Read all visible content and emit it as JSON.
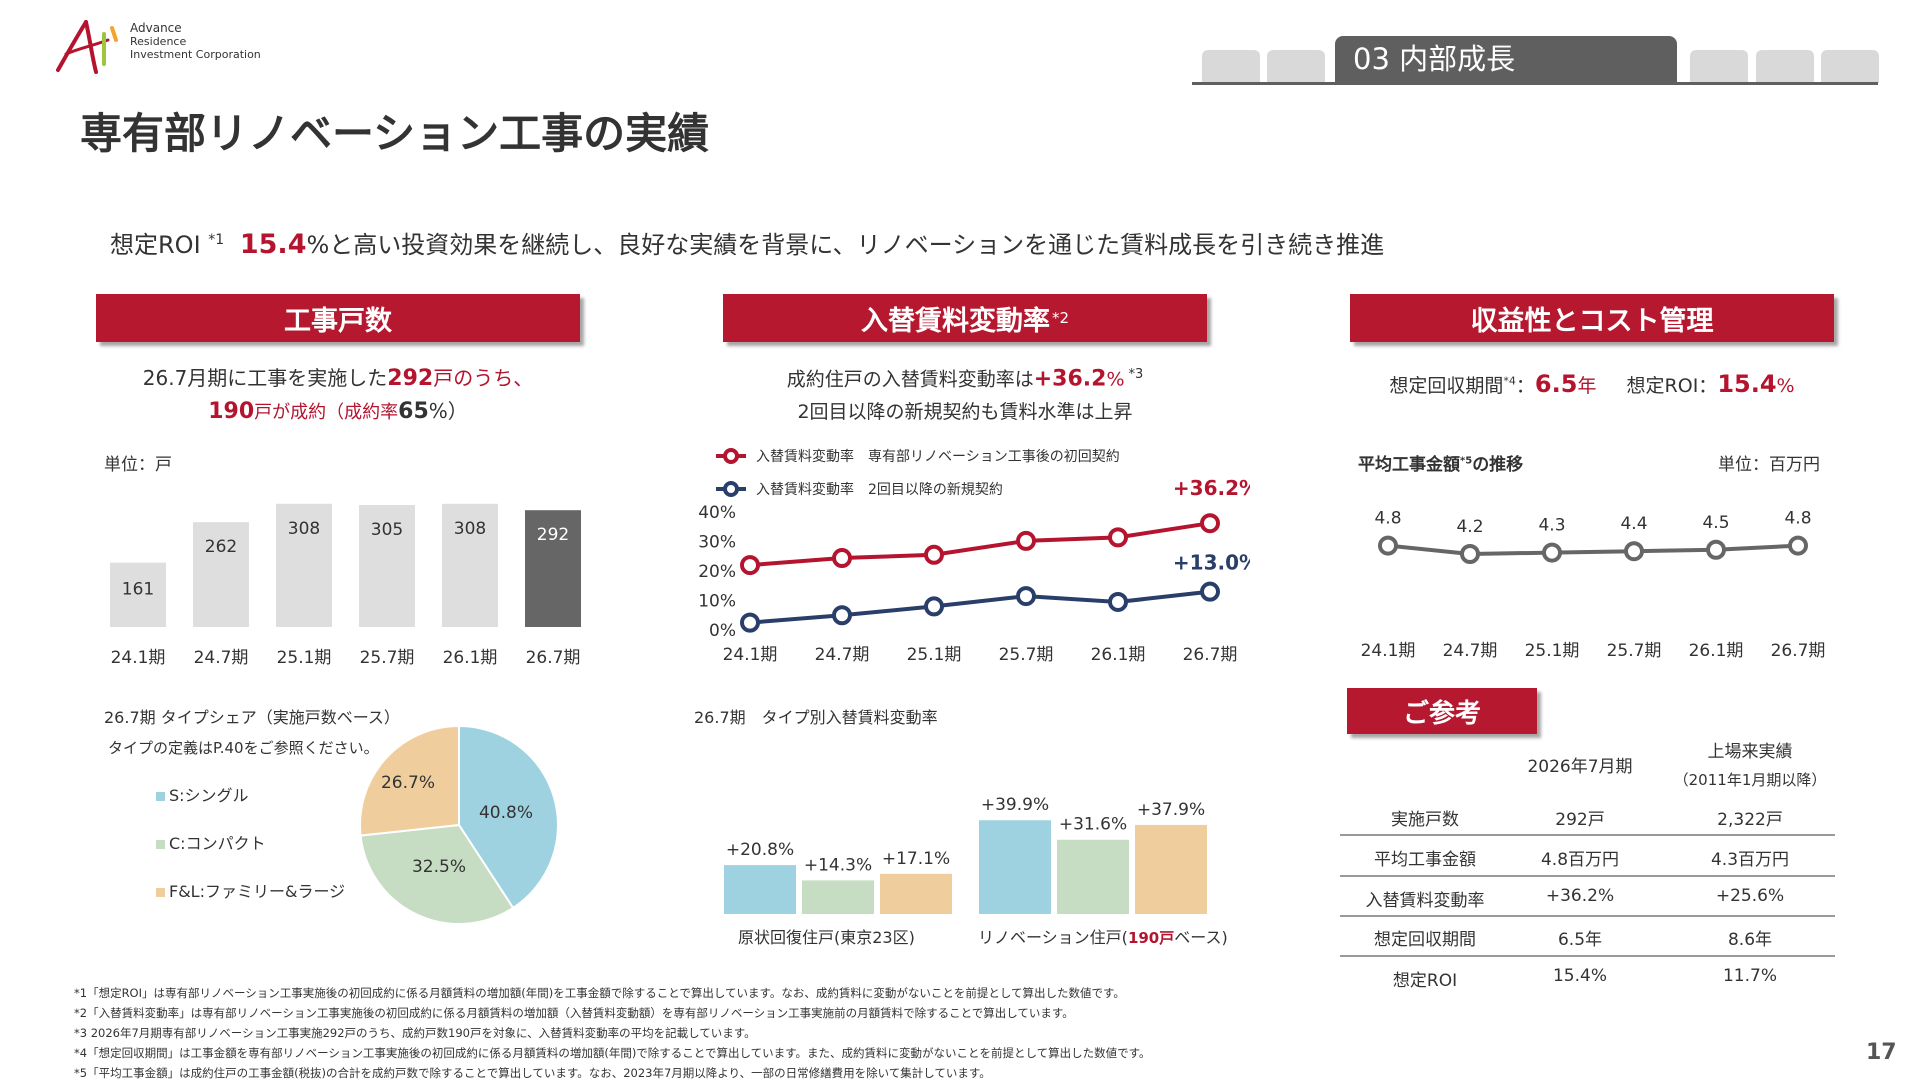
{
  "header": {
    "logo": {
      "line1": "Advance",
      "line2": "Residence",
      "line3": "Investment Corporation"
    },
    "section_tab": "03 内部成長",
    "title": "専有部リノベーション工事の実績"
  },
  "lead": {
    "prefix": "想定ROI",
    "note_mark": "*1",
    "value": "15.4",
    "text": "%と高い投資効果を継続し、良好な実績を背景に、リノベーションを通じた賃料成長を引き続き推進"
  },
  "panel_works": {
    "heading": "工事戸数",
    "summary1_a": "26.7月期に工事を実施した",
    "summary1_b": "292",
    "summary1_c": "戸のうち、",
    "summary2_a": "190",
    "summary2_b": "戸が成約（成約率",
    "summary2_c": "65",
    "summary2_d": "%）",
    "unit": "単位：戸"
  },
  "panel_rent": {
    "heading": "入替賃料変動率",
    "heading_note": "*2",
    "summary1_a": "成約住戸の入替賃料変動率は",
    "summary1_b": "+36.2",
    "summary1_c": "%",
    "summary1_note": "*3",
    "summary2": "2回目以降の新規契約も賃料水準は上昇"
  },
  "panel_profit": {
    "heading": "収益性とコスト管理",
    "payback_label": "想定回収期間",
    "payback_note": "*4",
    "payback_colon": "：",
    "payback_value": "6.5",
    "payback_unit": "年",
    "roi_label": "想定ROI：",
    "roi_value": "15.4",
    "roi_unit": "%",
    "chart_title_a": "平均工事金額",
    "chart_title_note": "*5",
    "chart_title_b": "の推移",
    "unit": "単位：百万円"
  },
  "chart_data": [
    {
      "type": "bar",
      "categories": [
        "24.1期",
        "24.7期",
        "25.1期",
        "25.7期",
        "26.1期",
        "26.7期"
      ],
      "values": [
        161,
        262,
        308,
        305,
        308,
        292
      ],
      "ylabel": "単位：戸",
      "colors": [
        "#dedede",
        "#dedede",
        "#dedede",
        "#dedede",
        "#dedede",
        "#666666"
      ]
    },
    {
      "type": "line",
      "categories": [
        "24.1期",
        "24.7期",
        "25.1期",
        "25.7期",
        "26.1期",
        "26.7期"
      ],
      "yticks": [
        "0%",
        "10%",
        "20%",
        "30%",
        "40%"
      ],
      "ylim": [
        0,
        40
      ],
      "series": [
        {
          "name": "入替賃料変動率　専有部リノベーション工事後の初回契約",
          "values": [
            22.0,
            24.4,
            25.5,
            30.2,
            31.4,
            36.2
          ],
          "color": "#b5142f",
          "end_label": "+36.2%"
        },
        {
          "name": "入替賃料変動率　2回目以降の新規契約",
          "values": [
            2.5,
            5.0,
            8.0,
            11.5,
            9.5,
            13.0
          ],
          "color": "#2a3e6a",
          "end_label": "+13.0%"
        }
      ]
    },
    {
      "type": "line",
      "categories": [
        "24.1期",
        "24.7期",
        "25.1期",
        "25.7期",
        "26.1期",
        "26.7期"
      ],
      "values": [
        4.8,
        4.2,
        4.3,
        4.4,
        4.5,
        4.8
      ],
      "labels": [
        "4.8",
        "4.2",
        "4.3",
        "4.4",
        "4.5",
        "4.8"
      ],
      "color": "#666666"
    },
    {
      "type": "pie",
      "title": "26.7期 タイプシェア（実施戸数ベース）",
      "subtitle": "タイプの定義はP.40をご参照ください。",
      "slices": [
        {
          "name": "S:シングル",
          "value": 40.8,
          "label": "40.8%",
          "color": "#9fd2e1"
        },
        {
          "name": "C:コンパクト",
          "value": 32.5,
          "label": "32.5%",
          "color": "#c6dcc3"
        },
        {
          "name": "F&L:ファミリー&ラージ",
          "value": 26.7,
          "label": "26.7%",
          "color": "#f0cd9d"
        }
      ]
    },
    {
      "type": "bar",
      "title": "26.7期　タイプ別入替賃料変動率",
      "groups": [
        {
          "name": "原状回復住戸(東京23区)",
          "values": [
            20.8,
            14.3,
            17.1
          ],
          "labels": [
            "+20.8%",
            "+14.3%",
            "+17.1%"
          ]
        },
        {
          "name": "リノベーション住戸(190戸ベース)",
          "values": [
            39.9,
            31.6,
            37.9
          ],
          "labels": [
            "+39.9%",
            "+31.6%",
            "+37.9%"
          ]
        }
      ],
      "colors": [
        "#9fd2e1",
        "#c6dcc3",
        "#f0cd9d"
      ]
    }
  ],
  "group_labels": {
    "g1": "原状回復住戸(東京23区)",
    "g2_a": "リノベーション住戸(",
    "g2_b": "190戸",
    "g2_c": "ベース)"
  },
  "reference": {
    "heading": "ご参考",
    "col1": "2026年7月期",
    "col2_a": "上場来実績",
    "col2_b": "（2011年1月期以降）",
    "rows": [
      {
        "label": "実施戸数",
        "v1": "292戸",
        "v2": "2,322戸"
      },
      {
        "label": "平均工事金額",
        "v1": "4.8百万円",
        "v2": "4.3百万円"
      },
      {
        "label": "入替賃料変動率",
        "v1": "+36.2%",
        "v2": "+25.6%"
      },
      {
        "label": "想定回収期間",
        "v1": "6.5年",
        "v2": "8.6年"
      },
      {
        "label": "想定ROI",
        "v1": "15.4%",
        "v2": "11.7%"
      }
    ]
  },
  "notes": [
    "*1「想定ROI」は専有部リノベーション工事実施後の初回成約に係る月額賃料の増加額(年間)を工事金額で除することで算出しています。なお、成約賃料に変動がないことを前提として算出した数値です。",
    "*2「入替賃料変動率」は専有部リノベーション工事実施後の初回成約に係る月額賃料の増加額（入替賃料変動額）を専有部リノベーション工事実施前の月額賃料で除することで算出しています。",
    "*3 2026年7月期専有部リノベーション工事実施292戸のうち、成約戸数190戸を対象に、入替賃料変動率の平均を記載しています。",
    "*4「想定回収期間」は工事金額を専有部リノベーション工事実施後の初回成約に係る月額賃料の増加額(年間)で除することで算出しています。また、成約賃料に変動がないことを前提として算出した数値です。",
    "*5「平均工事金額」は成約住戸の工事金額(税抜)の合計を成約戸数で除することで算出しています。なお、2023年7月期以降より、一部の日常修繕費用を除いて集計しています。"
  ],
  "page_number": "17"
}
